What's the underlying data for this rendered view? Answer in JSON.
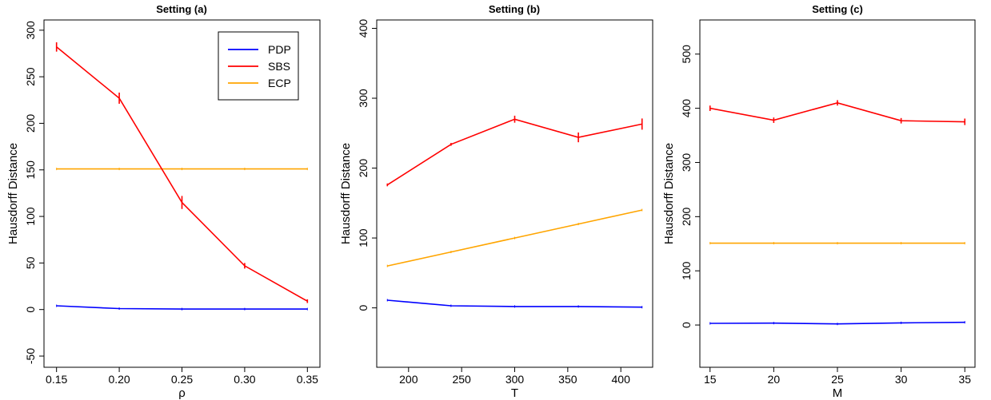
{
  "chart_data": [
    {
      "type": "line",
      "title": "Setting (a)",
      "xlabel": "ρ",
      "ylabel": "Hausdorff Distance",
      "x": [
        0.15,
        0.2,
        0.25,
        0.3,
        0.35
      ],
      "x_tick_labels": [
        "0.15",
        "0.20",
        "0.25",
        "0.30",
        "0.35"
      ],
      "y_ticks": [
        -50,
        0,
        50,
        100,
        150,
        200,
        250,
        300
      ],
      "xlim": [
        0.14,
        0.36
      ],
      "ylim": [
        -62,
        311
      ],
      "legend": "top-right",
      "series": [
        {
          "name": "PDP",
          "color": "#0000ff",
          "values": [
            4,
            1,
            0.5,
            0.5,
            0.5
          ],
          "errors": [
            0,
            0,
            0,
            0,
            0
          ]
        },
        {
          "name": "SBS",
          "color": "#ff0000",
          "values": [
            282,
            227,
            115,
            47,
            9
          ],
          "errors": [
            5,
            6,
            7,
            3,
            2
          ]
        },
        {
          "name": "ECP",
          "color": "#ffa500",
          "values": [
            151,
            151,
            151,
            151,
            151
          ],
          "errors": [
            0,
            0,
            0,
            0,
            0
          ]
        }
      ]
    },
    {
      "type": "line",
      "title": "Setting (b)",
      "xlabel": "T",
      "ylabel": "Hausdorff Distance",
      "x": [
        180,
        240,
        300,
        360,
        420
      ],
      "x_tick_labels": [
        "200",
        "250",
        "300",
        "350",
        "400"
      ],
      "x_ticks": [
        200,
        250,
        300,
        350,
        400
      ],
      "y_ticks": [
        0,
        100,
        200,
        300,
        400
      ],
      "xlim": [
        170,
        430
      ],
      "ylim": [
        -85,
        412
      ],
      "series": [
        {
          "name": "PDP",
          "color": "#0000ff",
          "values": [
            11,
            3,
            2,
            2,
            1
          ],
          "errors": [
            0,
            0,
            0,
            0,
            0
          ]
        },
        {
          "name": "SBS",
          "color": "#ff0000",
          "values": [
            176,
            234,
            270,
            244,
            263
          ],
          "errors": [
            2,
            2,
            5,
            7,
            8
          ]
        },
        {
          "name": "ECP",
          "color": "#ffa500",
          "values": [
            60,
            80,
            100,
            120,
            140
          ],
          "errors": [
            0,
            0,
            0,
            0,
            0
          ]
        }
      ]
    },
    {
      "type": "line",
      "title": "Setting (c)",
      "xlabel": "M",
      "ylabel": "Hausdorff Distance",
      "x": [
        15,
        20,
        25,
        30,
        35
      ],
      "x_tick_labels": [
        "15",
        "20",
        "25",
        "30",
        "35"
      ],
      "y_ticks": [
        0,
        100,
        200,
        300,
        400,
        500
      ],
      "xlim": [
        14.2,
        35.8
      ],
      "ylim": [
        -78,
        563
      ],
      "series": [
        {
          "name": "PDP",
          "color": "#0000ff",
          "values": [
            3,
            3.5,
            2,
            4,
            5
          ],
          "errors": [
            0,
            0,
            0,
            0,
            0
          ]
        },
        {
          "name": "SBS",
          "color": "#ff0000",
          "values": [
            400,
            378,
            410,
            377,
            375
          ],
          "errors": [
            5,
            5,
            5,
            5,
            6
          ]
        },
        {
          "name": "ECP",
          "color": "#ffa500",
          "values": [
            151,
            151,
            151,
            151,
            151
          ],
          "errors": [
            0,
            0,
            0,
            0,
            0
          ]
        }
      ]
    }
  ]
}
